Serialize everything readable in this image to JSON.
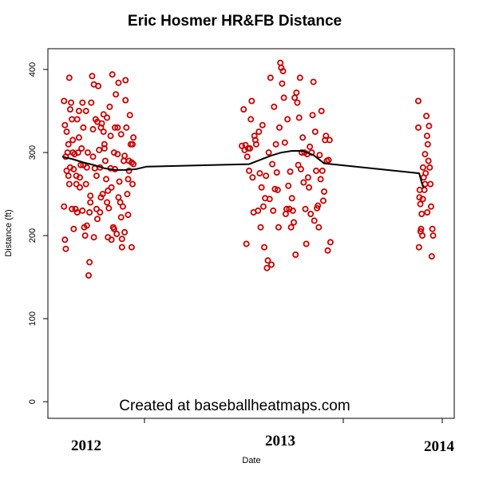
{
  "chart_data": {
    "type": "scatter",
    "title": "Eric Hosmer HR&FB Distance",
    "xlabel": "Date",
    "ylabel": "Distance (ft)",
    "ylim": [
      -20,
      425
    ],
    "y_ticks": [
      0,
      100,
      200,
      300,
      400
    ],
    "x_year_labels": [
      "2012",
      "2013",
      "2014"
    ],
    "grid": false,
    "point_color": "#cc0000",
    "smooth_color": "#000000",
    "watermark": "Created at baseballheatmaps.com",
    "series": [
      {
        "season": "2012",
        "points": [
          [
            0.02,
            362
          ],
          [
            0.03,
            333
          ],
          [
            0.04,
            295
          ],
          [
            0.05,
            325
          ],
          [
            0.06,
            300
          ],
          [
            0.07,
            272
          ],
          [
            0.08,
            390
          ],
          [
            0.09,
            352
          ],
          [
            0.1,
            360
          ],
          [
            0.11,
            340
          ],
          [
            0.12,
            315
          ],
          [
            0.13,
            280
          ],
          [
            0.14,
            298
          ],
          [
            0.15,
            232
          ],
          [
            0.16,
            262
          ],
          [
            0.17,
            228
          ],
          [
            0.18,
            300
          ],
          [
            0.19,
            350
          ],
          [
            0.2,
            270
          ],
          [
            0.21,
            285
          ],
          [
            0.22,
            305
          ],
          [
            0.23,
            230
          ],
          [
            0.24,
            330
          ],
          [
            0.25,
            210
          ],
          [
            0.26,
            200
          ],
          [
            0.27,
            262
          ],
          [
            0.28,
            282
          ],
          [
            0.29,
            300
          ],
          [
            0.3,
            152
          ],
          [
            0.31,
            168
          ],
          [
            0.32,
            248
          ],
          [
            0.33,
            360
          ],
          [
            0.34,
            392
          ],
          [
            0.35,
            328
          ],
          [
            0.36,
            382
          ],
          [
            0.37,
            281
          ],
          [
            0.38,
            340
          ],
          [
            0.39,
            272
          ],
          [
            0.4,
            220
          ],
          [
            0.41,
            380
          ],
          [
            0.42,
            303
          ],
          [
            0.43,
            228
          ],
          [
            0.44,
            330
          ],
          [
            0.45,
            335
          ],
          [
            0.46,
            250
          ],
          [
            0.47,
            325
          ],
          [
            0.48,
            310
          ],
          [
            0.49,
            290
          ],
          [
            0.5,
            268
          ],
          [
            0.51,
            240
          ],
          [
            0.52,
            198
          ],
          [
            0.53,
            233
          ],
          [
            0.54,
            355
          ],
          [
            0.55,
            281
          ],
          [
            0.56,
            258
          ],
          [
            0.57,
            394
          ],
          [
            0.58,
            210
          ],
          [
            0.59,
            300
          ],
          [
            0.6,
            280
          ],
          [
            0.61,
            370
          ],
          [
            0.62,
            202
          ],
          [
            0.63,
            330
          ],
          [
            0.64,
            384
          ],
          [
            0.65,
            265
          ],
          [
            0.66,
            240
          ],
          [
            0.67,
            322
          ],
          [
            0.68,
            186
          ],
          [
            0.69,
            235
          ],
          [
            0.7,
            290
          ],
          [
            0.71,
            296
          ],
          [
            0.72,
            387
          ],
          [
            0.73,
            330
          ],
          [
            0.74,
            250
          ],
          [
            0.75,
            225
          ],
          [
            0.76,
            278
          ],
          [
            0.77,
            345
          ],
          [
            0.78,
            310
          ],
          [
            0.79,
            186
          ],
          [
            0.8,
            262
          ],
          [
            0.81,
            286
          ],
          [
            0.02,
            235
          ],
          [
            0.03,
            195
          ],
          [
            0.05,
            278
          ],
          [
            0.07,
            310
          ],
          [
            0.09,
            282
          ],
          [
            0.11,
            232
          ],
          [
            0.13,
            208
          ],
          [
            0.17,
            340
          ],
          [
            0.19,
            318
          ],
          [
            0.23,
            360
          ],
          [
            0.27,
            350
          ],
          [
            0.31,
            228
          ],
          [
            0.35,
            295
          ],
          [
            0.39,
            232
          ],
          [
            0.43,
            282
          ],
          [
            0.47,
            346
          ],
          [
            0.51,
            342
          ],
          [
            0.55,
            320
          ],
          [
            0.59,
            208
          ],
          [
            0.63,
            298
          ],
          [
            0.67,
            222
          ],
          [
            0.71,
            204
          ],
          [
            0.75,
            268
          ],
          [
            0.79,
            288
          ],
          [
            0.81,
            318
          ],
          [
            0.04,
            184
          ],
          [
            0.08,
            262
          ],
          [
            0.12,
            300
          ],
          [
            0.16,
            272
          ],
          [
            0.2,
            258
          ],
          [
            0.24,
            285
          ],
          [
            0.28,
            212
          ],
          [
            0.32,
            240
          ],
          [
            0.36,
            198
          ],
          [
            0.4,
            337
          ],
          [
            0.44,
            246
          ],
          [
            0.48,
            305
          ],
          [
            0.52,
            254
          ],
          [
            0.56,
            195
          ],
          [
            0.6,
            330
          ],
          [
            0.64,
            246
          ],
          [
            0.68,
            196
          ],
          [
            0.72,
            363
          ],
          [
            0.76,
            290
          ],
          [
            0.8,
            310
          ]
        ]
      },
      {
        "season": "2013",
        "points": [
          [
            0.0,
            308
          ],
          [
            0.02,
            352
          ],
          [
            0.04,
            309
          ],
          [
            0.06,
            295
          ],
          [
            0.08,
            278
          ],
          [
            0.1,
            340
          ],
          [
            0.12,
            270
          ],
          [
            0.14,
            320
          ],
          [
            0.16,
            310
          ],
          [
            0.18,
            230
          ],
          [
            0.2,
            275
          ],
          [
            0.22,
            258
          ],
          [
            0.24,
            235
          ],
          [
            0.26,
            245
          ],
          [
            0.28,
            161
          ],
          [
            0.3,
            300
          ],
          [
            0.32,
            390
          ],
          [
            0.34,
            286
          ],
          [
            0.36,
            355
          ],
          [
            0.38,
            310
          ],
          [
            0.4,
            255
          ],
          [
            0.42,
            330
          ],
          [
            0.44,
            402
          ],
          [
            0.46,
            398
          ],
          [
            0.48,
            312
          ],
          [
            0.5,
            232
          ],
          [
            0.52,
            260
          ],
          [
            0.54,
            277
          ],
          [
            0.56,
            245
          ],
          [
            0.58,
            216
          ],
          [
            0.6,
            177
          ],
          [
            0.62,
            360
          ],
          [
            0.64,
            342
          ],
          [
            0.66,
            280
          ],
          [
            0.68,
            318
          ],
          [
            0.7,
            300
          ],
          [
            0.72,
            190
          ],
          [
            0.74,
            270
          ],
          [
            0.76,
            307
          ],
          [
            0.78,
            300
          ],
          [
            0.8,
            385
          ],
          [
            0.82,
            325
          ],
          [
            0.84,
            233
          ],
          [
            0.86,
            210
          ],
          [
            0.88,
            268
          ],
          [
            0.9,
            278
          ],
          [
            0.92,
            253
          ],
          [
            0.94,
            320
          ],
          [
            0.96,
            182
          ],
          [
            0.98,
            315
          ],
          [
            1.0,
            362
          ],
          [
            0.03,
            303
          ],
          [
            0.07,
            305
          ],
          [
            0.11,
            362
          ],
          [
            0.15,
            315
          ],
          [
            0.19,
            325
          ],
          [
            0.23,
            333
          ],
          [
            0.27,
            272
          ],
          [
            0.31,
            244
          ],
          [
            0.35,
            230
          ],
          [
            0.39,
            276
          ],
          [
            0.43,
            408
          ],
          [
            0.47,
            366
          ],
          [
            0.51,
            340
          ],
          [
            0.55,
            210
          ],
          [
            0.59,
            366
          ],
          [
            0.63,
            285
          ],
          [
            0.67,
            300
          ],
          [
            0.71,
            232
          ],
          [
            0.75,
            258
          ],
          [
            0.79,
            345
          ],
          [
            0.83,
            278
          ],
          [
            0.87,
            297
          ],
          [
            0.91,
            242
          ],
          [
            0.95,
            290
          ],
          [
            0.99,
            192
          ],
          [
            0.05,
            190
          ],
          [
            0.13,
            228
          ],
          [
            0.21,
            210
          ],
          [
            0.29,
            170
          ],
          [
            0.37,
            256
          ],
          [
            0.45,
            383
          ],
          [
            0.53,
            232
          ],
          [
            0.61,
            372
          ],
          [
            0.69,
            264
          ],
          [
            0.77,
            226
          ],
          [
            0.85,
            236
          ],
          [
            0.93,
            315
          ],
          [
            0.97,
            291
          ],
          [
            0.33,
            165
          ],
          [
            0.57,
            230
          ],
          [
            0.65,
            390
          ],
          [
            0.73,
            298
          ],
          [
            0.81,
            218
          ],
          [
            0.89,
            350
          ],
          [
            0.25,
            186
          ],
          [
            0.41,
            210
          ],
          [
            0.49,
            226
          ],
          [
            0.09,
            305
          ]
        ]
      },
      {
        "season": "2014",
        "points": [
          [
            0.0,
            330
          ],
          [
            0.03,
            186
          ],
          [
            0.06,
            255
          ],
          [
            0.09,
            238
          ],
          [
            0.12,
            208
          ],
          [
            0.15,
            226
          ],
          [
            0.18,
            200
          ],
          [
            0.21,
            282
          ],
          [
            0.24,
            270
          ],
          [
            0.27,
            255
          ],
          [
            0.3,
            298
          ],
          [
            0.33,
            275
          ],
          [
            0.36,
            344
          ],
          [
            0.39,
            320
          ],
          [
            0.42,
            310
          ],
          [
            0.45,
            290
          ],
          [
            0.48,
            332
          ],
          [
            0.51,
            282
          ],
          [
            0.54,
            262
          ],
          [
            0.57,
            235
          ],
          [
            0.6,
            175
          ],
          [
            0.63,
            208
          ],
          [
            0.66,
            200
          ],
          [
            0.05,
            246
          ],
          [
            0.1,
            205
          ],
          [
            0.2,
            244
          ],
          [
            0.3,
            262
          ],
          [
            0.4,
            228
          ]
        ]
      }
    ],
    "smooth_curve": [
      [
        0.0,
        295
      ],
      [
        0.12,
        292
      ],
      [
        0.24,
        288
      ],
      [
        0.36,
        285
      ],
      [
        0.48,
        281
      ],
      [
        0.6,
        279
      ],
      [
        0.72,
        279
      ],
      [
        0.84,
        280
      ],
      [
        0.96,
        283
      ],
      [
        1.08,
        286
      ],
      [
        1.2,
        291
      ],
      [
        1.32,
        296
      ],
      [
        1.44,
        300
      ],
      [
        1.56,
        302
      ],
      [
        1.68,
        302
      ],
      [
        1.8,
        297
      ],
      [
        1.92,
        287
      ],
      [
        2.04,
        275
      ],
      [
        2.16,
        263
      ],
      [
        2.24,
        257
      ]
    ]
  }
}
